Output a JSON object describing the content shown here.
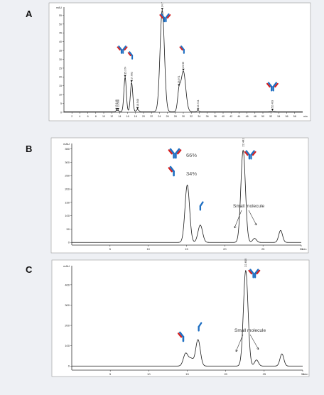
{
  "colors": {
    "heavy_chain": "#1f6fc2",
    "light_chain": "#d62020",
    "trace": "#1a1a1a",
    "background": "#eef0f4"
  },
  "chart_data": [
    {
      "panel": "A",
      "type": "line",
      "ylabel": "mAU",
      "xlabel": "min",
      "xlim": [
        0,
        60
      ],
      "ylim": [
        0,
        58
      ],
      "xticks": [
        "2",
        "4",
        "6",
        "8",
        "10",
        "12",
        "14",
        "16",
        "18",
        "20",
        "22",
        "24",
        "26",
        "28",
        "30",
        "32",
        "34",
        "36",
        "38",
        "40",
        "42",
        "44",
        "46",
        "48",
        "50",
        "52",
        "54",
        "56",
        "58"
      ],
      "yticks": [
        "0",
        "5",
        "10",
        "15",
        "20",
        "25",
        "30",
        "35",
        "40",
        "45",
        "50",
        "55"
      ],
      "peaks": [
        {
          "rt": 13.2,
          "h": 0.6,
          "w": 0.2
        },
        {
          "rt": 13.6,
          "h": 0.7,
          "w": 0.2
        },
        {
          "rt": 15.37,
          "h": 19.5,
          "w": 0.3
        },
        {
          "rt": 17.0,
          "h": 16.5,
          "w": 0.3
        },
        {
          "rt": 18.5,
          "h": 1.2,
          "w": 0.3
        },
        {
          "rt": 24.7,
          "h": 57.5,
          "w": 0.55
        },
        {
          "rt": 28.9,
          "h": 10,
          "w": 0.35
        },
        {
          "rt": 30.0,
          "h": 23,
          "w": 0.6
        },
        {
          "rt": 33.7,
          "h": 0.6,
          "w": 0.3
        },
        {
          "rt": 52.4,
          "h": 0.4,
          "w": 0.4
        }
      ],
      "peak_labels": [
        "13.168",
        "13.568",
        "15.374",
        "17.002",
        "18.548",
        "24.7",
        "28.971",
        "29.99",
        "33.724",
        "52.403"
      ],
      "label_rt": [
        13.2,
        13.6,
        15.37,
        17.0,
        18.5,
        24.7,
        28.9,
        30.0,
        33.7,
        52.4
      ]
    },
    {
      "panel": "B",
      "type": "line",
      "ylabel": "mAU",
      "xlabel": "min",
      "xlim": [
        0,
        30
      ],
      "ylim": [
        -10,
        360
      ],
      "xticks": [
        "5",
        "10",
        "15",
        "20",
        "25",
        "30"
      ],
      "yticks": [
        "0",
        "50",
        "100",
        "150",
        "200",
        "250",
        "300",
        "350"
      ],
      "peaks": [
        {
          "rt": 15.1,
          "h": 215,
          "w": 0.3
        },
        {
          "rt": 16.8,
          "h": 65,
          "w": 0.3
        },
        {
          "rt": 22.4,
          "h": 345,
          "w": 0.3
        },
        {
          "rt": 23.9,
          "h": 15,
          "w": 0.25
        },
        {
          "rt": 27.3,
          "h": 45,
          "w": 0.25
        }
      ],
      "peak_labels": [
        "22.441"
      ],
      "label_rt": [
        22.4
      ],
      "annotations": [
        "66%",
        "34%",
        "Small molecule"
      ]
    },
    {
      "panel": "C",
      "type": "line",
      "ylabel": "mAU",
      "xlabel": "min",
      "xlim": [
        0,
        30
      ],
      "ylim": [
        -20,
        480
      ],
      "xticks": [
        "5",
        "10",
        "15",
        "20",
        "25",
        "30"
      ],
      "yticks": [
        "0",
        "100",
        "200",
        "300",
        "400"
      ],
      "peaks": [
        {
          "rt": 14.8,
          "h": 62,
          "w": 0.3
        },
        {
          "rt": 15.5,
          "h": 35,
          "w": 0.3
        },
        {
          "rt": 16.4,
          "h": 130,
          "w": 0.3
        },
        {
          "rt": 22.6,
          "h": 470,
          "w": 0.3
        },
        {
          "rt": 24.0,
          "h": 30,
          "w": 0.25
        },
        {
          "rt": 27.3,
          "h": 60,
          "w": 0.25
        }
      ],
      "peak_labels": [
        "22.605"
      ],
      "label_rt": [
        22.6
      ],
      "annotations": [
        "Small molecule"
      ]
    }
  ],
  "panels": {
    "a": "A",
    "b": "B",
    "c": "C"
  }
}
